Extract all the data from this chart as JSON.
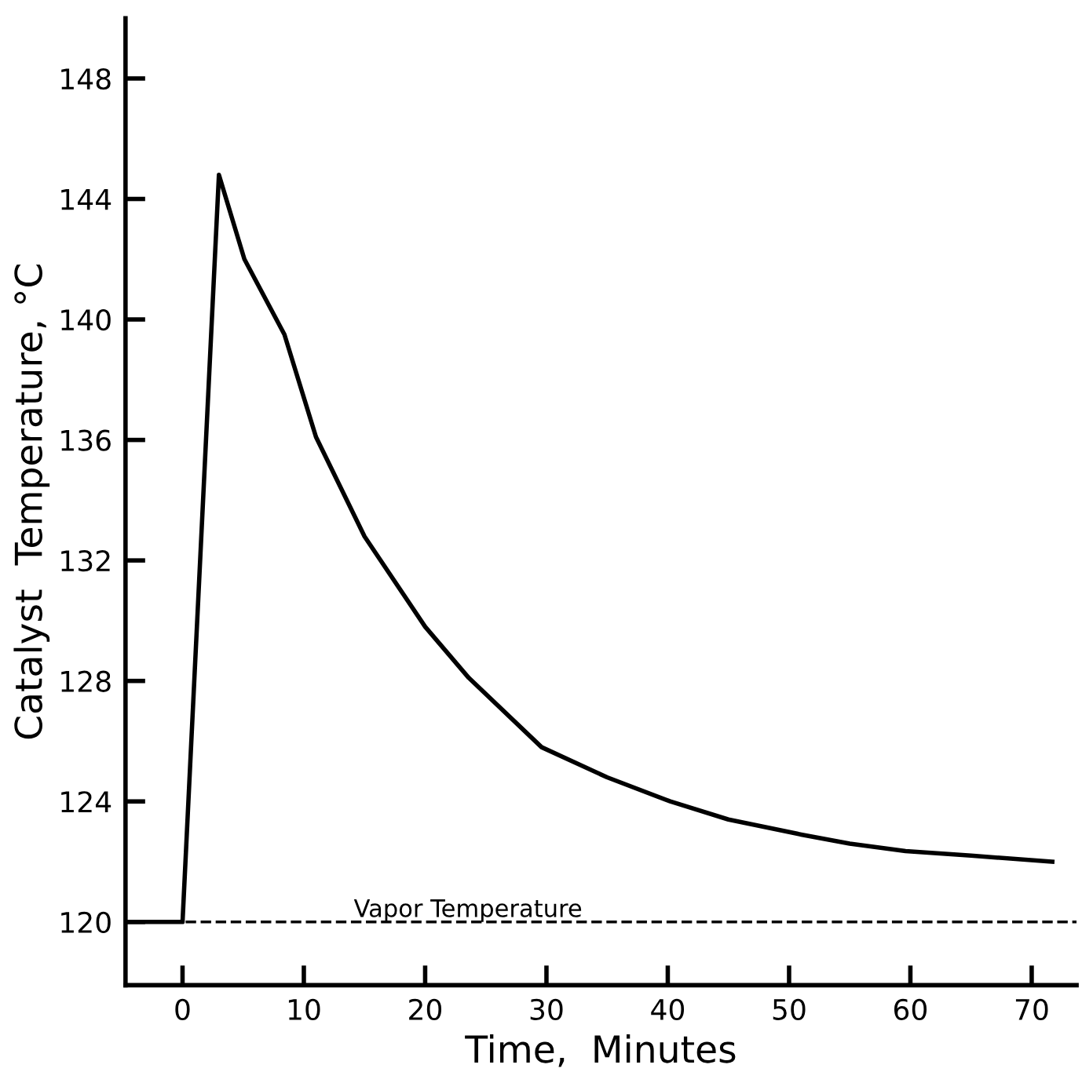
{
  "chart_data": {
    "type": "line",
    "xlabel": "Time,  Minutes",
    "ylabel": "Catalyst  Temperature, °C",
    "x": [
      -4.7,
      0,
      3,
      5.1,
      8.4,
      11,
      15,
      20,
      23.6,
      29.6,
      35,
      40.2,
      45,
      51,
      55,
      59.6,
      65,
      71.7
    ],
    "series": [
      {
        "color": "#000000",
        "values": [
          120,
          120,
          144.8,
          142.0,
          139.5,
          136.1,
          132.8,
          129.8,
          128.1,
          125.8,
          124.8,
          124.0,
          123.4,
          122.9,
          122.6,
          122.35,
          122.2,
          122.0
        ]
      }
    ],
    "xlim": [
      -4.7,
      73.7
    ],
    "ylim": [
      117.9,
      150
    ],
    "xticks": [
      0,
      10,
      20,
      30,
      40,
      50,
      60,
      70
    ],
    "yticks": [
      120,
      124,
      128,
      132,
      136,
      140,
      144,
      148
    ],
    "ref_lines": [
      {
        "axis": "y",
        "value": 120,
        "label": "Vapor Temperature",
        "color": "#000000",
        "line_style": "dashed"
      }
    ],
    "grid": false,
    "legend": false,
    "marker": "none",
    "line_style": "solid"
  }
}
